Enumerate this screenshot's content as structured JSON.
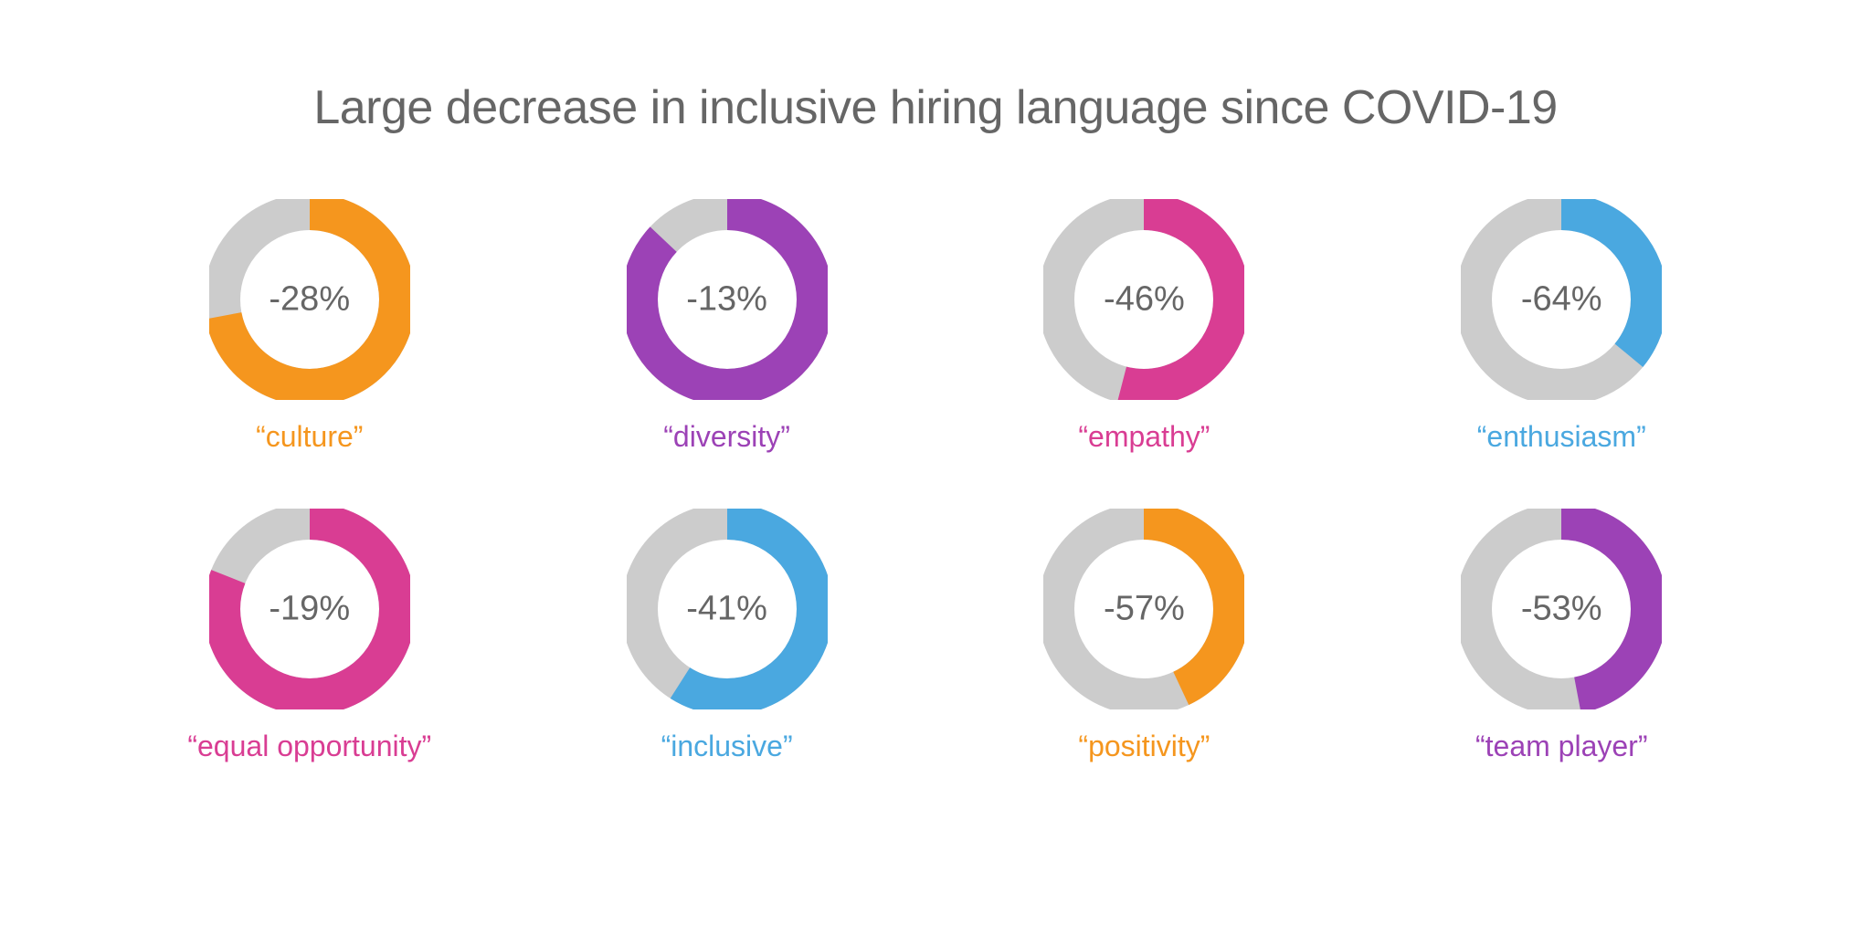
{
  "title": "Large decrease in inclusive hiring language since COVID-19",
  "title_color": "#666666",
  "title_fontsize": 52,
  "background_color": "#ffffff",
  "layout": {
    "rows": 2,
    "cols": 4,
    "col_gap": 190,
    "row_gap": 60
  },
  "donut": {
    "outer_radius": 96,
    "stroke_width": 40,
    "track_color": "#cccccc",
    "start_angle_deg": 0,
    "direction": "clockwise",
    "value_fontsize": 38,
    "value_color": "#666666",
    "label_fontsize": 32
  },
  "items": [
    {
      "label": "“culture”",
      "value_text": "-28%",
      "percent_colored": 72,
      "color": "#f5961e"
    },
    {
      "label": "“diversity”",
      "value_text": "-13%",
      "percent_colored": 87,
      "color": "#9c42b6"
    },
    {
      "label": "“empathy”",
      "value_text": "-46%",
      "percent_colored": 54,
      "color": "#d93d93"
    },
    {
      "label": "“enthusiasm”",
      "value_text": "-64%",
      "percent_colored": 36,
      "color": "#4aa8e0"
    },
    {
      "label": "“equal opportunity”",
      "value_text": "-19%",
      "percent_colored": 81,
      "color": "#d93d93"
    },
    {
      "label": "“inclusive”",
      "value_text": "-41%",
      "percent_colored": 59,
      "color": "#4aa8e0"
    },
    {
      "label": "“positivity”",
      "value_text": "-57%",
      "percent_colored": 43,
      "color": "#f5961e"
    },
    {
      "label": "“team player”",
      "value_text": "-53%",
      "percent_colored": 47,
      "color": "#9c42b6"
    }
  ]
}
